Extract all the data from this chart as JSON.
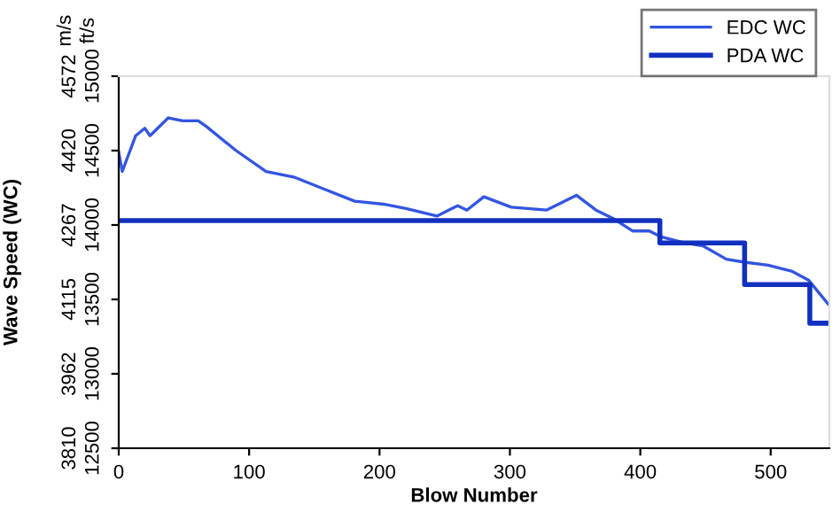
{
  "chart_data": {
    "type": "line",
    "xlabel": "Blow Number",
    "y2label": "Wave Speed (WC)",
    "annotations": [
      "m/s",
      "ft/s"
    ],
    "series": [
      {
        "name": "EDC WC",
        "color": "#3355e0",
        "x": [
          0,
          2.7,
          13,
          20,
          24,
          38,
          49,
          61,
          67.5,
          90,
          113,
          135,
          158,
          181,
          203,
          221,
          244,
          260,
          267,
          280,
          301,
          328,
          351,
          366,
          380,
          394,
          407,
          416,
          434,
          448,
          466,
          480,
          498,
          516,
          529,
          544
        ],
        "values": [
          14490,
          14360,
          14600,
          14650,
          14600,
          14720,
          14700,
          14700,
          14660,
          14500,
          14360,
          14320,
          14240,
          14160,
          14140,
          14110,
          14060,
          14130,
          14100,
          14190,
          14120,
          14100,
          14200,
          14100,
          14040,
          13960,
          13960,
          13920,
          13880,
          13860,
          13770,
          13750,
          13730,
          13690,
          13630,
          13470
        ]
      },
      {
        "name": "PDA WC",
        "color": "#1030c0",
        "type": "step",
        "x": [
          0,
          415,
          480,
          530,
          545
        ],
        "values": [
          14030,
          13880,
          13600,
          13340,
          13340
        ]
      }
    ],
    "xlim": [
      0,
      545
    ],
    "xticks": [
      0,
      100,
      200,
      300,
      400,
      500
    ],
    "ylim": [
      12500,
      15000
    ],
    "yticks": [
      12500,
      13000,
      13500,
      14000,
      14500,
      15000
    ],
    "y2lim": [
      3810,
      4572
    ],
    "y2ticks": [
      3810,
      3962,
      4115,
      4267,
      4420,
      4572
    ],
    "legend": "top right",
    "grid": false
  }
}
